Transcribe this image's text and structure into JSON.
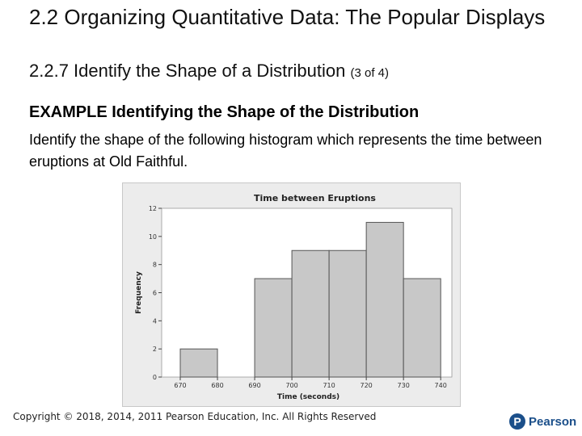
{
  "slide": {
    "title_line1": "2.2 Organizing Quantitative Data: The Popular Displays",
    "title_line2": "2.2.7 Identify the Shape of a Distribution",
    "title_part": "(3 of 4)",
    "example_heading": "EXAMPLE Identifying the Shape of the Distribution",
    "example_body": "Identify the shape of the following histogram which represents the time between eruptions at Old Faithful.",
    "copyright": "Copyright © 2018, 2014, 2011 Pearson Education, Inc. All Rights Reserved",
    "logo_letter": "P",
    "logo_word": "Pearson"
  },
  "colors": {
    "bar_fill": "#c8c8c8",
    "bar_stroke": "#555555",
    "plot_bg": "#ffffff",
    "frame_bg": "#ececec",
    "brand": "#1b4f8a"
  },
  "chart_data": {
    "type": "bar",
    "title": "Time between Eruptions",
    "xlabel": "Time (seconds)",
    "ylabel": "Frequency",
    "bin_edges": [
      670,
      680,
      690,
      700,
      710,
      720,
      730,
      740
    ],
    "values": [
      2,
      0,
      7,
      9,
      9,
      11,
      7
    ],
    "x_ticks": [
      "670",
      "680",
      "690",
      "700",
      "710",
      "720",
      "730",
      "740"
    ],
    "y_ticks": [
      "0",
      "2",
      "4",
      "6",
      "8",
      "10",
      "12"
    ],
    "ylim": [
      0,
      12
    ],
    "xlim": [
      665,
      743
    ],
    "grid": false,
    "legend": "none"
  }
}
